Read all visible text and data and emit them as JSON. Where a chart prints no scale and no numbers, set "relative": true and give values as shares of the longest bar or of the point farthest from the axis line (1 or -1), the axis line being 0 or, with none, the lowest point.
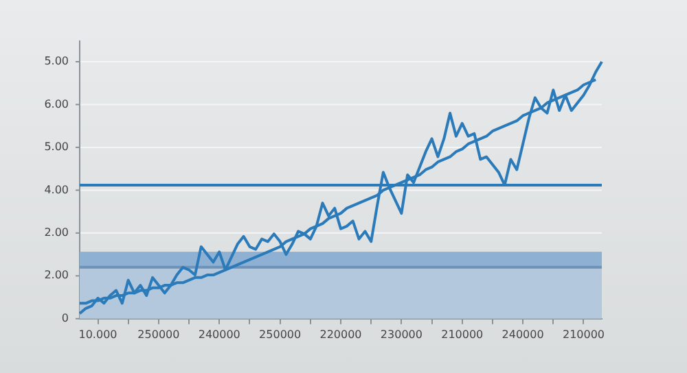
{
  "chart_data": {
    "type": "line",
    "relative": true,
    "categories": [
      null,
      null,
      null,
      "10.000",
      null,
      null,
      null,
      null,
      null,
      null,
      null,
      null,
      null,
      "250000",
      null,
      null,
      null,
      null,
      null,
      null,
      null,
      null,
      null,
      "240000",
      null,
      null,
      null,
      null,
      null,
      null,
      null,
      null,
      null,
      "250000",
      null,
      null,
      null,
      null,
      null,
      null,
      null,
      null,
      null,
      "220000",
      null,
      null,
      null,
      null,
      null,
      null,
      null,
      null,
      null,
      "230000",
      null,
      null,
      null,
      null,
      null,
      null,
      null,
      null,
      null,
      "210000",
      null,
      null,
      null,
      null,
      null,
      null,
      null,
      null,
      null,
      "240000",
      null,
      null,
      null,
      null,
      null,
      null,
      null,
      null,
      null,
      "210000",
      null,
      null,
      null
    ],
    "grid": "y",
    "legend": false,
    "marker": "none",
    "line_style": "solid",
    "annotations": [
      "0",
      "2.00",
      "2.00",
      "4.00",
      "5.00",
      "6.00",
      "5.00"
    ],
    "series": [
      {
        "color": "#2b7bba",
        "values": [
          0.02,
          0.04,
          0.05,
          0.08,
          0.06,
          0.09,
          0.11,
          0.06,
          0.15,
          0.1,
          0.13,
          0.09,
          0.16,
          0.13,
          0.1,
          0.13,
          0.17,
          0.2,
          0.19,
          0.17,
          0.28,
          0.25,
          0.22,
          0.26,
          0.19,
          0.24,
          0.29,
          0.32,
          0.28,
          0.27,
          0.31,
          0.3,
          0.33,
          0.3,
          0.25,
          0.29,
          0.34,
          0.33,
          0.31,
          0.36,
          0.45,
          0.4,
          0.43,
          0.35,
          0.36,
          0.38,
          0.31,
          0.34,
          0.3,
          0.44,
          0.57,
          0.51,
          0.46,
          0.41,
          0.56,
          0.53,
          0.59,
          0.65,
          0.7,
          0.63,
          0.7,
          0.8,
          0.71,
          0.76,
          0.71,
          0.72,
          0.62,
          0.63,
          0.6,
          0.57,
          0.52,
          0.62,
          0.58,
          0.68,
          0.78,
          0.86,
          0.82,
          0.8,
          0.89,
          0.81,
          0.87,
          0.81,
          0.84,
          0.87,
          0.91,
          0.96,
          1
        ]
      },
      {
        "color": "#2b7bba",
        "values": [
          0.06,
          0.06,
          0.07,
          0.07,
          0.08,
          0.08,
          0.09,
          0.09,
          0.1,
          0.1,
          0.11,
          0.11,
          0.12,
          0.12,
          0.13,
          0.13,
          0.14,
          0.14,
          0.15,
          0.16,
          0.16,
          0.17,
          0.17,
          0.18,
          0.19,
          0.2,
          0.21,
          0.22,
          0.23,
          0.24,
          0.25,
          0.26,
          0.27,
          0.28,
          0.3,
          0.31,
          0.32,
          0.33,
          0.35,
          0.36,
          0.37,
          0.39,
          0.4,
          0.41,
          0.43,
          0.44,
          0.45,
          0.46,
          0.47,
          0.48,
          0.5,
          0.51,
          0.52,
          0.53,
          0.54,
          0.55,
          0.56,
          0.58,
          0.59,
          0.61,
          0.62,
          0.63,
          0.65,
          0.66,
          0.68,
          0.69,
          0.7,
          0.71,
          0.73,
          0.74,
          0.75,
          0.76,
          0.77,
          0.79,
          0.8,
          0.81,
          0.82,
          0.84,
          0.85,
          0.86,
          0.87,
          0.88,
          0.89,
          0.91,
          0.92,
          0.93,
          null
        ]
      }
    ],
    "ref_lines": [
      {
        "axis": "y",
        "value": 0.52,
        "color": "#2b7bba"
      },
      {
        "axis": "y",
        "value": 0.2,
        "color": "#6f92b8"
      }
    ],
    "bands": [
      {
        "axis": "y",
        "from": 0,
        "to": 0.26,
        "color": "#b3c8dd"
      },
      {
        "axis": "y",
        "from": 0.2,
        "to": 0.26,
        "color": "#8eb0d2"
      }
    ]
  }
}
